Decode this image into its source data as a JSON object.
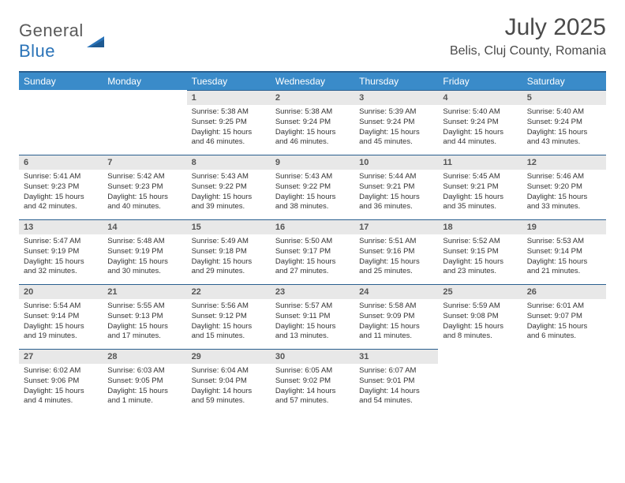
{
  "logo": {
    "word1": "General",
    "word2": "Blue"
  },
  "title": "July 2025",
  "location": "Belis, Cluj County, Romania",
  "colors": {
    "header_bg": "#3a8bc9",
    "header_border": "#2a5f8f",
    "daynum_bg": "#e8e8e8",
    "text": "#333333",
    "logo_gray": "#5a5a5a",
    "logo_blue": "#2a73b8"
  },
  "typography": {
    "title_fontsize": 30,
    "location_fontsize": 16,
    "weekday_fontsize": 12,
    "daynum_fontsize": 11,
    "body_fontsize": 9.5
  },
  "weekdays": [
    "Sunday",
    "Monday",
    "Tuesday",
    "Wednesday",
    "Thursday",
    "Friday",
    "Saturday"
  ],
  "weeks": [
    [
      null,
      null,
      {
        "n": "1",
        "sr": "5:38 AM",
        "ss": "9:25 PM",
        "dl": "15 hours and 46 minutes."
      },
      {
        "n": "2",
        "sr": "5:38 AM",
        "ss": "9:24 PM",
        "dl": "15 hours and 46 minutes."
      },
      {
        "n": "3",
        "sr": "5:39 AM",
        "ss": "9:24 PM",
        "dl": "15 hours and 45 minutes."
      },
      {
        "n": "4",
        "sr": "5:40 AM",
        "ss": "9:24 PM",
        "dl": "15 hours and 44 minutes."
      },
      {
        "n": "5",
        "sr": "5:40 AM",
        "ss": "9:24 PM",
        "dl": "15 hours and 43 minutes."
      }
    ],
    [
      {
        "n": "6",
        "sr": "5:41 AM",
        "ss": "9:23 PM",
        "dl": "15 hours and 42 minutes."
      },
      {
        "n": "7",
        "sr": "5:42 AM",
        "ss": "9:23 PM",
        "dl": "15 hours and 40 minutes."
      },
      {
        "n": "8",
        "sr": "5:43 AM",
        "ss": "9:22 PM",
        "dl": "15 hours and 39 minutes."
      },
      {
        "n": "9",
        "sr": "5:43 AM",
        "ss": "9:22 PM",
        "dl": "15 hours and 38 minutes."
      },
      {
        "n": "10",
        "sr": "5:44 AM",
        "ss": "9:21 PM",
        "dl": "15 hours and 36 minutes."
      },
      {
        "n": "11",
        "sr": "5:45 AM",
        "ss": "9:21 PM",
        "dl": "15 hours and 35 minutes."
      },
      {
        "n": "12",
        "sr": "5:46 AM",
        "ss": "9:20 PM",
        "dl": "15 hours and 33 minutes."
      }
    ],
    [
      {
        "n": "13",
        "sr": "5:47 AM",
        "ss": "9:19 PM",
        "dl": "15 hours and 32 minutes."
      },
      {
        "n": "14",
        "sr": "5:48 AM",
        "ss": "9:19 PM",
        "dl": "15 hours and 30 minutes."
      },
      {
        "n": "15",
        "sr": "5:49 AM",
        "ss": "9:18 PM",
        "dl": "15 hours and 29 minutes."
      },
      {
        "n": "16",
        "sr": "5:50 AM",
        "ss": "9:17 PM",
        "dl": "15 hours and 27 minutes."
      },
      {
        "n": "17",
        "sr": "5:51 AM",
        "ss": "9:16 PM",
        "dl": "15 hours and 25 minutes."
      },
      {
        "n": "18",
        "sr": "5:52 AM",
        "ss": "9:15 PM",
        "dl": "15 hours and 23 minutes."
      },
      {
        "n": "19",
        "sr": "5:53 AM",
        "ss": "9:14 PM",
        "dl": "15 hours and 21 minutes."
      }
    ],
    [
      {
        "n": "20",
        "sr": "5:54 AM",
        "ss": "9:14 PM",
        "dl": "15 hours and 19 minutes."
      },
      {
        "n": "21",
        "sr": "5:55 AM",
        "ss": "9:13 PM",
        "dl": "15 hours and 17 minutes."
      },
      {
        "n": "22",
        "sr": "5:56 AM",
        "ss": "9:12 PM",
        "dl": "15 hours and 15 minutes."
      },
      {
        "n": "23",
        "sr": "5:57 AM",
        "ss": "9:11 PM",
        "dl": "15 hours and 13 minutes."
      },
      {
        "n": "24",
        "sr": "5:58 AM",
        "ss": "9:09 PM",
        "dl": "15 hours and 11 minutes."
      },
      {
        "n": "25",
        "sr": "5:59 AM",
        "ss": "9:08 PM",
        "dl": "15 hours and 8 minutes."
      },
      {
        "n": "26",
        "sr": "6:01 AM",
        "ss": "9:07 PM",
        "dl": "15 hours and 6 minutes."
      }
    ],
    [
      {
        "n": "27",
        "sr": "6:02 AM",
        "ss": "9:06 PM",
        "dl": "15 hours and 4 minutes."
      },
      {
        "n": "28",
        "sr": "6:03 AM",
        "ss": "9:05 PM",
        "dl": "15 hours and 1 minute."
      },
      {
        "n": "29",
        "sr": "6:04 AM",
        "ss": "9:04 PM",
        "dl": "14 hours and 59 minutes."
      },
      {
        "n": "30",
        "sr": "6:05 AM",
        "ss": "9:02 PM",
        "dl": "14 hours and 57 minutes."
      },
      {
        "n": "31",
        "sr": "6:07 AM",
        "ss": "9:01 PM",
        "dl": "14 hours and 54 minutes."
      },
      null,
      null
    ]
  ],
  "labels": {
    "sunrise": "Sunrise:",
    "sunset": "Sunset:",
    "daylight": "Daylight:"
  }
}
